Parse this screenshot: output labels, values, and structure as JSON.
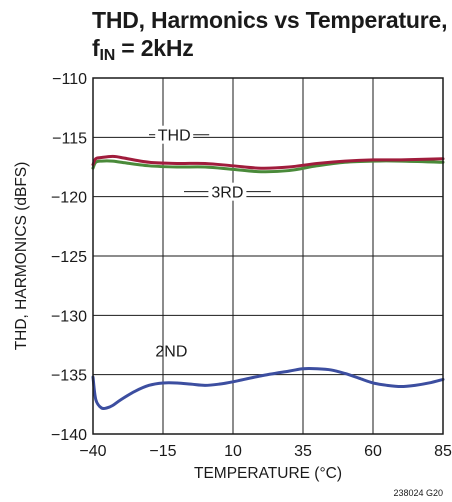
{
  "title": {
    "line1": "THD, Harmonics vs Temperature,",
    "line2_prefix": "f",
    "line2_sub": "IN",
    "line2_suffix": " = 2kHz"
  },
  "figure_id": "238024 G20",
  "chart_data": {
    "type": "line",
    "xlabel": "TEMPERATURE (°C)",
    "ylabel": "THD, HARMONICS (dBFS)",
    "xlim": [
      -40,
      85
    ],
    "ylim": [
      -140,
      -110
    ],
    "xticks": [
      -40,
      -15,
      10,
      35,
      60,
      85
    ],
    "xtick_labels": [
      "−40",
      "−15",
      "10",
      "35",
      "60",
      "85"
    ],
    "yticks": [
      -110,
      -115,
      -120,
      -125,
      -130,
      -135,
      -140
    ],
    "ytick_labels": [
      "−110",
      "−115",
      "−120",
      "−125",
      "−130",
      "−135",
      "−140"
    ],
    "grid": true,
    "series": [
      {
        "name": "3RD",
        "color": "#4a8a3a",
        "x": [
          -40,
          -39,
          -37,
          -33,
          -30,
          -20,
          -10,
          0,
          10,
          20,
          30,
          40,
          50,
          60,
          70,
          85
        ],
        "y": [
          -117.6,
          -117.1,
          -117.0,
          -117.0,
          -117.1,
          -117.4,
          -117.5,
          -117.5,
          -117.7,
          -117.9,
          -117.8,
          -117.4,
          -117.1,
          -117.0,
          -117.0,
          -117.1
        ]
      },
      {
        "name": "THD",
        "color": "#a01c3c",
        "x": [
          -40,
          -39,
          -37,
          -33,
          -30,
          -20,
          -10,
          0,
          10,
          20,
          30,
          40,
          50,
          60,
          70,
          85
        ],
        "y": [
          -117.3,
          -116.8,
          -116.7,
          -116.6,
          -116.7,
          -117.1,
          -117.2,
          -117.2,
          -117.4,
          -117.6,
          -117.5,
          -117.2,
          -117.0,
          -116.9,
          -116.9,
          -116.8
        ]
      },
      {
        "name": "2ND",
        "color": "#3c4ea0",
        "x": [
          -40,
          -39,
          -37,
          -35,
          -33,
          -30,
          -25,
          -20,
          -15,
          -10,
          -5,
          0,
          5,
          10,
          20,
          30,
          35,
          40,
          45,
          50,
          55,
          60,
          65,
          70,
          75,
          80,
          85
        ],
        "y": [
          -135.2,
          -137.1,
          -137.8,
          -137.8,
          -137.6,
          -137.1,
          -136.4,
          -135.9,
          -135.7,
          -135.7,
          -135.8,
          -135.9,
          -135.8,
          -135.6,
          -135.1,
          -134.7,
          -134.5,
          -134.5,
          -134.6,
          -134.9,
          -135.3,
          -135.7,
          -135.9,
          -136.0,
          -135.9,
          -135.7,
          -135.4
        ]
      }
    ],
    "annotations": [
      {
        "text": "THD",
        "x": -11,
        "y": -115.2,
        "leaders": [
          [
            -20,
            -15.5
          ],
          [
            -5,
            1.5
          ]
        ]
      },
      {
        "text": "3RD",
        "x": 8,
        "y": -120.0,
        "leaders": [
          [
            -7.5,
            2.5
          ],
          [
            13.5,
            23.5
          ]
        ]
      },
      {
        "text": "2ND",
        "x": -12,
        "y": -133.4,
        "leaders": []
      }
    ]
  }
}
